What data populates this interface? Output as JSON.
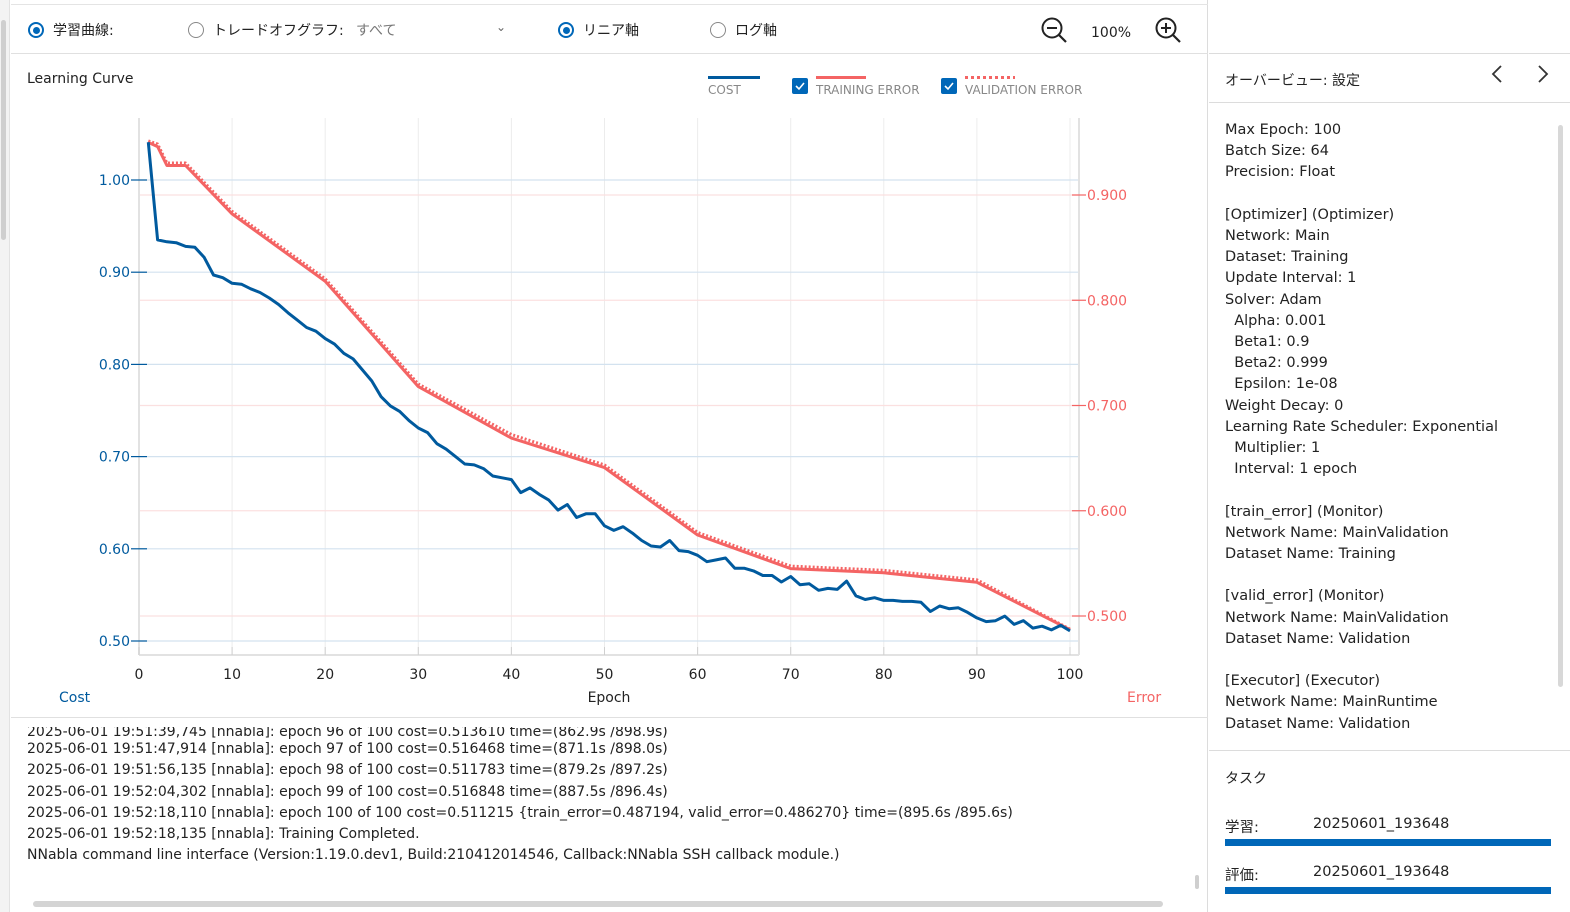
{
  "toolbar": {
    "learning_curve_label": "学習曲線:",
    "tradeoff_label": "トレードオフグラフ:",
    "tradeoff_dropdown_value": "すべて",
    "linear_axis_label": "リニア軸",
    "log_axis_label": "ログ軸",
    "zoom_level": "100%",
    "learning_curve_selected": true,
    "tradeoff_selected": false,
    "linear_selected": true,
    "log_selected": false
  },
  "chart_title": "Learning Curve",
  "legend": {
    "cost": "COST",
    "training_error": "TRAINING ERROR",
    "validation_error": "VALIDATION ERROR",
    "training_error_checked": true,
    "validation_error_checked": true
  },
  "colors": {
    "cost": "#005a9e",
    "error": "#f46464",
    "accent": "#0067b8"
  },
  "chart_data": {
    "type": "line",
    "title": "Learning Curve",
    "xlabel": "Epoch",
    "ylabel_left": "Cost",
    "ylabel_right": "Error",
    "xlim": [
      0,
      100
    ],
    "ylim_left": [
      0.5,
      1.0
    ],
    "ylim_right": [
      0.5,
      0.9
    ],
    "x_ticks": [
      0,
      10,
      20,
      30,
      40,
      50,
      60,
      70,
      80,
      90,
      100
    ],
    "y_ticks_left": [
      "0.50",
      "0.60",
      "0.70",
      "0.80",
      "0.90",
      "1.00"
    ],
    "y_ticks_right": [
      "0.500",
      "0.600",
      "0.700",
      "0.800",
      "0.900"
    ],
    "grid": true,
    "legend_position": "top-right",
    "series": [
      {
        "name": "Cost",
        "axis": "left",
        "x": [
          1,
          2,
          3,
          4,
          5,
          6,
          7,
          8,
          9,
          10,
          11,
          12,
          13,
          14,
          15,
          16,
          17,
          18,
          19,
          20,
          21,
          22,
          23,
          24,
          25,
          26,
          27,
          28,
          29,
          30,
          31,
          32,
          33,
          34,
          35,
          36,
          37,
          38,
          39,
          40,
          41,
          42,
          43,
          44,
          45,
          46,
          47,
          48,
          49,
          50,
          51,
          52,
          53,
          54,
          55,
          56,
          57,
          58,
          59,
          60,
          61,
          62,
          63,
          64,
          65,
          66,
          67,
          68,
          69,
          70,
          71,
          72,
          73,
          74,
          75,
          76,
          77,
          78,
          79,
          80,
          81,
          82,
          83,
          84,
          85,
          86,
          87,
          88,
          89,
          90,
          91,
          92,
          93,
          94,
          95,
          96,
          97,
          98,
          99,
          100
        ],
        "values": [
          1.041,
          0.935,
          0.933,
          0.932,
          0.928,
          0.927,
          0.916,
          0.897,
          0.894,
          0.888,
          0.887,
          0.882,
          0.878,
          0.872,
          0.865,
          0.856,
          0.848,
          0.84,
          0.836,
          0.828,
          0.822,
          0.812,
          0.806,
          0.794,
          0.782,
          0.765,
          0.755,
          0.749,
          0.739,
          0.731,
          0.726,
          0.714,
          0.708,
          0.7,
          0.692,
          0.691,
          0.687,
          0.679,
          0.677,
          0.675,
          0.661,
          0.666,
          0.659,
          0.653,
          0.642,
          0.648,
          0.634,
          0.638,
          0.638,
          0.625,
          0.62,
          0.624,
          0.617,
          0.609,
          0.603,
          0.602,
          0.609,
          0.598,
          0.597,
          0.593,
          0.586,
          0.588,
          0.59,
          0.579,
          0.579,
          0.576,
          0.571,
          0.571,
          0.564,
          0.57,
          0.561,
          0.562,
          0.555,
          0.557,
          0.556,
          0.565,
          0.549,
          0.545,
          0.547,
          0.544,
          0.544,
          0.543,
          0.543,
          0.542,
          0.532,
          0.538,
          0.535,
          0.536,
          0.531,
          0.525,
          0.521,
          0.522,
          0.527,
          0.518,
          0.522,
          0.514,
          0.516,
          0.512,
          0.517,
          0.511
        ]
      },
      {
        "name": "Training Error",
        "axis": "right",
        "x": [
          1,
          2,
          3,
          4,
          5,
          10,
          20,
          30,
          40,
          50,
          60,
          70,
          80,
          90,
          100
        ],
        "values": [
          0.95,
          0.946,
          0.928,
          0.928,
          0.928,
          0.882,
          0.818,
          0.718,
          0.669,
          0.641,
          0.577,
          0.545,
          0.541,
          0.532,
          0.487
        ]
      },
      {
        "name": "Validation Error",
        "axis": "right",
        "x": [
          1,
          2,
          3,
          4,
          5,
          10,
          20,
          30,
          40,
          50,
          60,
          70,
          80,
          90,
          100
        ],
        "values": [
          0.95,
          0.947,
          0.929,
          0.929,
          0.929,
          0.883,
          0.819,
          0.719,
          0.671,
          0.642,
          0.578,
          0.546,
          0.542,
          0.533,
          0.486
        ]
      }
    ]
  },
  "log_lines": [
    "2025-06-01 19:51:39,745 [nnabla]: epoch 96 of 100 cost=0.513610  time=(862.9s /898.9s)",
    "2025-06-01 19:51:47,914 [nnabla]: epoch 97 of 100 cost=0.516468  time=(871.1s /898.0s)",
    "2025-06-01 19:51:56,135 [nnabla]: epoch 98 of 100 cost=0.511783  time=(879.2s /897.2s)",
    "2025-06-01 19:52:04,302 [nnabla]: epoch 99 of 100 cost=0.516848  time=(887.5s /896.4s)",
    "2025-06-01 19:52:18,110 [nnabla]: epoch 100 of 100 cost=0.511215  {train_error=0.487194, valid_error=0.486270} time=(895.6s /895.6s)",
    "2025-06-01 19:52:18,135 [nnabla]: Training Completed.",
    "NNabla command line interface (Version:1.19.0.dev1, Build:210412014546, Callback:NNabla SSH callback module.)"
  ],
  "overview": {
    "title": "オーバービュー: 設定",
    "settings_text": "Max Epoch: 100\nBatch Size: 64\nPrecision: Float\n\n[Optimizer] (Optimizer)\nNetwork: Main\nDataset: Training\nUpdate Interval: 1\nSolver: Adam\n  Alpha: 0.001\n  Beta1: 0.9\n  Beta2: 0.999\n  Epsilon: 1e-08\nWeight Decay: 0\nLearning Rate Scheduler: Exponential\n  Multiplier: 1\n  Interval: 1 epoch\n\n[train_error] (Monitor)\nNetwork Name: MainValidation\nDataset Name: Training\n\n[valid_error] (Monitor)\nNetwork Name: MainValidation\nDataset Name: Validation\n\n[Executor] (Executor)\nNetwork Name: MainRuntime\nDataset Name: Validation"
  },
  "tasks": {
    "title": "タスク",
    "items": [
      {
        "label": "学習:",
        "value": "20250601_193648",
        "progress": 1.0
      },
      {
        "label": "評価:",
        "value": "20250601_193648",
        "progress": 1.0
      }
    ]
  }
}
